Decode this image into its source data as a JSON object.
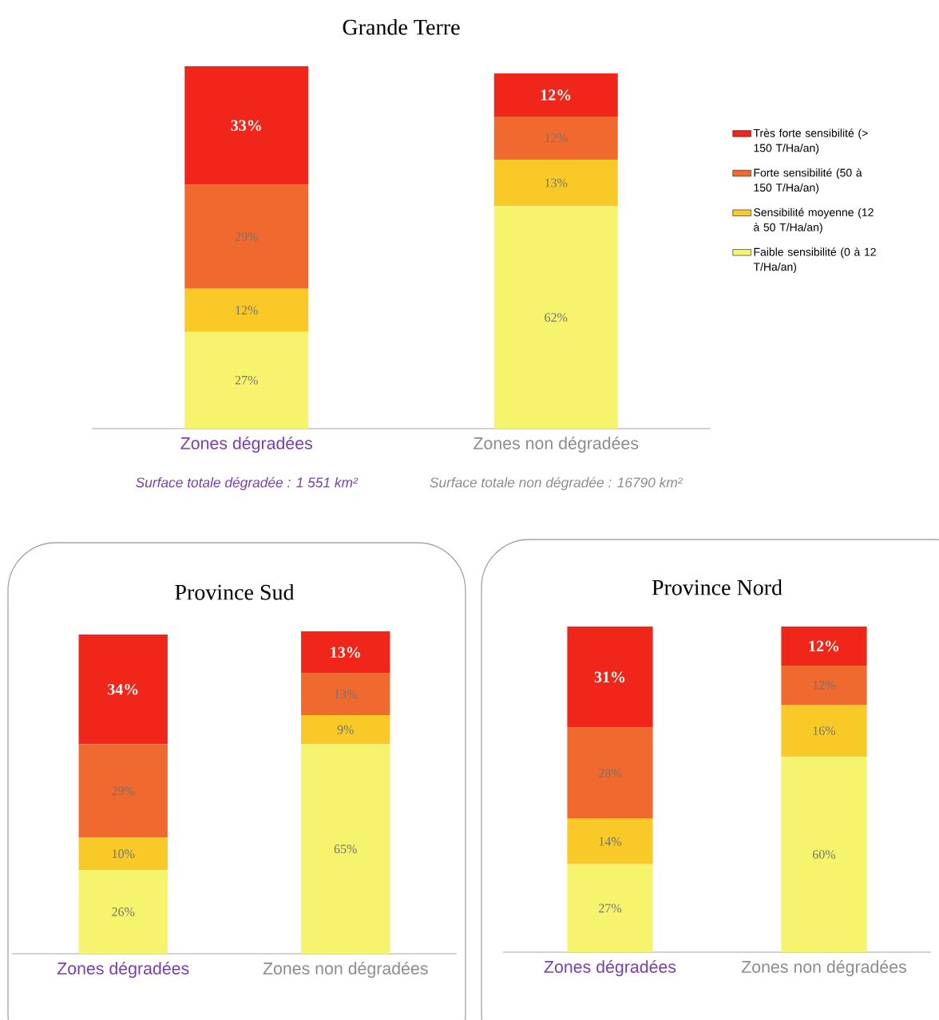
{
  "chart_data": [
    {
      "type": "bar",
      "stacked": true,
      "title": "Grande Terre",
      "categories": [
        "Zones dégradées",
        "Zones non dégradées"
      ],
      "tick_labels": "x",
      "legend": "right",
      "series": [
        {
          "name": "Faible sensibilité (0 à 12 T/Ha/an)",
          "color": "#f6f46c",
          "values": [
            27,
            62
          ],
          "value_labels": [
            "27%",
            "62%"
          ]
        },
        {
          "name": "Sensibilité moyenne (12 à 50 T/Ha/an)",
          "color": "#f9c928",
          "values": [
            12,
            13
          ],
          "value_labels": [
            "12%",
            "13%"
          ]
        },
        {
          "name": "Forte sensibilité (50 à 150 T/Ha/an)",
          "color": "#f06a30",
          "values": [
            29,
            12
          ],
          "value_labels": [
            "29%",
            "12%"
          ]
        },
        {
          "name": "Très forte sensibilité (> 150 T/Ha/an)",
          "color": "#f0261a",
          "values": [
            33,
            12
          ],
          "value_labels": [
            "33%",
            "12%"
          ]
        }
      ],
      "annotations": [
        "Surface totale dégradée :  1 551 km²",
        "Surface totale non dégradée :  16790 km²"
      ]
    },
    {
      "type": "bar",
      "stacked": true,
      "title": "Province Sud",
      "categories": [
        "Zones dégradées",
        "Zones non dégradées"
      ],
      "tick_labels": "x",
      "series": [
        {
          "color": "#f6f46c",
          "values": [
            26,
            65
          ],
          "value_labels": [
            "26%",
            "65%"
          ]
        },
        {
          "color": "#f9c928",
          "values": [
            10,
            9
          ],
          "value_labels": [
            "10%",
            "9%"
          ]
        },
        {
          "color": "#f06a30",
          "values": [
            29,
            13
          ],
          "value_labels": [
            "29%",
            "13%"
          ]
        },
        {
          "color": "#f0261a",
          "values": [
            34,
            13
          ],
          "value_labels": [
            "34%",
            "13%"
          ]
        }
      ]
    },
    {
      "type": "bar",
      "stacked": true,
      "title": "Province Nord",
      "categories": [
        "Zones dégradées",
        "Zones non dégradées"
      ],
      "tick_labels": "x",
      "series": [
        {
          "color": "#f6f46c",
          "values": [
            27,
            60
          ],
          "value_labels": [
            "27%",
            "60%"
          ]
        },
        {
          "color": "#f9c928",
          "values": [
            14,
            16
          ],
          "value_labels": [
            "14%",
            "16%"
          ]
        },
        {
          "color": "#f06a30",
          "values": [
            28,
            12
          ],
          "value_labels": [
            "28%",
            "12%"
          ]
        },
        {
          "color": "#f0261a",
          "values": [
            31,
            12
          ],
          "value_labels": [
            "31%",
            "12%"
          ]
        }
      ]
    }
  ]
}
